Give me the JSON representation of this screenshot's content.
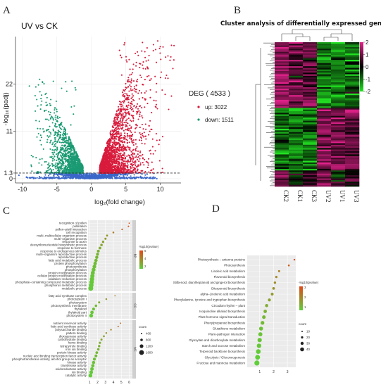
{
  "panels": {
    "a": "A",
    "b": "B",
    "c": "C",
    "d": "D"
  },
  "colors": {
    "up": "#d81b3c",
    "down": "#1a9a72",
    "ns": "#3b67c9",
    "gridA": "#e4e4e4"
  },
  "chart_data": [
    {
      "type": "scatter",
      "panel": "A",
      "title": "UV vs CK",
      "xlabel": "log₂(fold change)",
      "ylabel": "-log₁₀(padj)",
      "x_ticks": [
        -10,
        -5,
        0,
        5,
        10
      ],
      "y_ticks": [
        0,
        1.3,
        11,
        22
      ],
      "xlim": [
        -11,
        13
      ],
      "ylim": [
        -1,
        33
      ],
      "threshold_y": 1.3,
      "legend": {
        "title": "DEG ( 4533 )",
        "items": [
          {
            "name": "up: 3022",
            "color": "#d81b3c"
          },
          {
            "name": "down: 1511",
            "color": "#1a9a72"
          }
        ]
      }
    },
    {
      "type": "heatmap",
      "panel": "B",
      "title": "Cluster analysis of differentially expressed genes",
      "columns": [
        "CK2",
        "CK1",
        "CK3",
        "UV2",
        "UV1",
        "UV3"
      ],
      "scale_ticks": [
        "2",
        "1",
        "0",
        "-1",
        "-2"
      ],
      "scale_range": [
        -2,
        2
      ]
    },
    {
      "type": "scatter",
      "panel": "C",
      "x_ticks": [
        "1",
        "2",
        "3",
        "4",
        "5",
        "6"
      ],
      "xlim": [
        0.8,
        6.4
      ],
      "groups": [
        {
          "name": "BP",
          "terms": [
            "recognition of pollen",
            "pollination",
            "pollen–pistil interaction",
            "cell recognition",
            "multi–multicellular organism process",
            "multi–organism process",
            "response to auxin",
            "deoxyribonucleotide biosynthetic process",
            "response to hormone",
            "response to endogenous stimulus",
            "multi–organism reproductive process",
            "reproductive process",
            "fatty acid metabolic process",
            "protein phosphorylation",
            "photosynthesis",
            "phosphorylation",
            "protein modification process",
            "cellular protein modification process",
            "oxidation–reduction process",
            "phosphate–containing compound metabolic process",
            "phosphorus metabolic process",
            "metabolic process"
          ],
          "values": [
            6.0,
            5.9,
            5.1,
            4.0,
            3.2,
            3.0,
            2.7,
            2.5,
            2.3,
            2.1,
            2.0,
            1.9,
            1.8,
            1.7,
            1.6,
            1.5,
            1.4,
            1.35,
            1.3,
            1.25,
            1.2,
            1.15
          ]
        },
        {
          "name": "CC",
          "terms": [
            "fatty acid synthase complex",
            "photosystem I",
            "photosystem",
            "photosynthetic membrane",
            "thylakoid",
            "thylakoid part",
            "photosystem II"
          ],
          "values": [
            4.2,
            3.1,
            2.2,
            1.8,
            1.5,
            1.3,
            1.2
          ]
        },
        {
          "name": "MF",
          "terms": [
            "nutrient reservoir activity",
            "fatty acid synthase activity",
            "polysaccharide binding",
            "pattern binding",
            "dioxygenase activity",
            "carbohydrate binding",
            "heme binding",
            "tetrapyrrole binding",
            "iron ion binding",
            "protein kinase activity",
            "nucleic acid binding transcription factor activity",
            "phosphotransferase activity, alcohol group as acceptor",
            "kinase activity",
            "transferase activity",
            "oxidoreductase activity",
            "ion binding",
            "catalytic activity"
          ],
          "values": [
            4.9,
            4.6,
            3.7,
            3.1,
            2.8,
            2.5,
            2.3,
            2.2,
            2.1,
            1.9,
            1.8,
            1.6,
            1.5,
            1.4,
            1.3,
            1.2,
            1.1
          ]
        }
      ],
      "legend": {
        "color_title": "-log10(pvalue)",
        "color_ticks": [
          "6",
          "4",
          "2"
        ],
        "size_title": "count",
        "size_ticks": [
          "400",
          "800",
          "1200",
          "1600"
        ]
      }
    },
    {
      "type": "scatter",
      "panel": "D",
      "x_ticks": [
        "1",
        "2",
        "3"
      ],
      "xlim": [
        0.1,
        3.6
      ],
      "terms": [
        "Photosynthesis – antenna proteins",
        "Photosynthesis",
        "Linoleic acid metabolism",
        "Flavonoid biosynthesis",
        "Stilbenoid, diarylheptanoid and gingerol biosynthesis",
        "Diterpenoid biosynthesis",
        "alpha–Linolenic acid metabolism",
        "Phenylalanine, tyrosine and tryptophan biosynthesis",
        "Circadian rhythm – plant",
        "Isoquinoline alkaloid biosynthesis",
        "Plant hormone signal transduction",
        "Phenylpropanoid biosynthesis",
        "Glutathione metabolism",
        "Plant–pathogen interaction",
        "Glyoxylate and dicarboxylate metabolism",
        "Starch and sucrose metabolism",
        "Terpenoid backbone biosynthesis",
        "Glycolysis / Gluconeogenesis",
        "Fructose and mannose metabolism"
      ],
      "values": [
        3.5,
        3.1,
        2.4,
        2.2,
        2.1,
        2.0,
        1.9,
        1.7,
        1.5,
        1.4,
        1.3,
        1.2,
        1.1,
        1.05,
        1.0,
        0.95,
        0.9,
        0.85,
        0.8
      ],
      "legend": {
        "color_title": "-log10(pvalue)",
        "color_ticks": [
          "3",
          "2",
          "1"
        ],
        "size_title": "count",
        "size_ticks": [
          "10",
          "20",
          "30",
          "40"
        ]
      }
    }
  ]
}
